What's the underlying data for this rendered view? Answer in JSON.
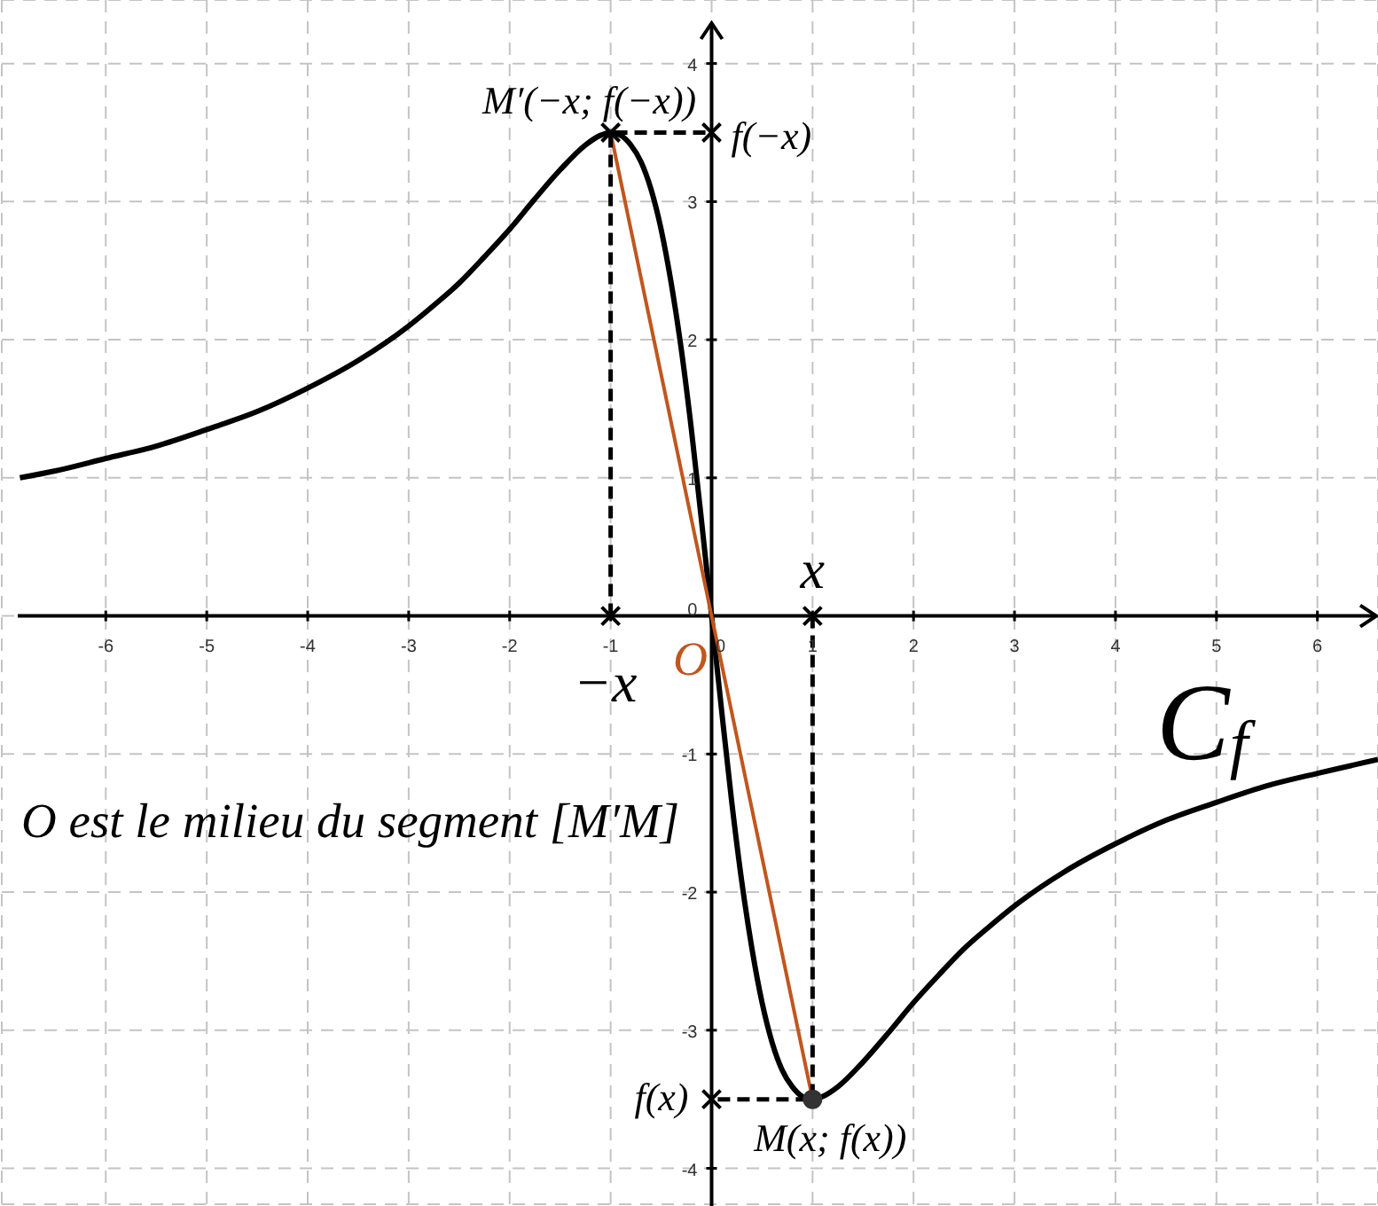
{
  "chart_data": {
    "type": "line",
    "annotations": [
      {
        "text": "M′(−x; f(−x))",
        "x": -1,
        "y": 3.5
      },
      {
        "text": "f(−x)",
        "x": 0,
        "y": 3.5
      },
      {
        "text": "M(x; f(x))",
        "x": 1,
        "y": -3.5
      },
      {
        "text": "f(x)",
        "x": 0,
        "y": -3.5
      },
      {
        "text": "x",
        "x": 1,
        "y": 0
      },
      {
        "text": "−x",
        "x": -1,
        "y": 0
      },
      {
        "text": "O",
        "x": 0,
        "y": 0
      },
      "C$_{f}$",
      "O est le milieu du segment [M′M]"
    ],
    "xlim": [
      -7.03,
      6.6
    ],
    "ylim": [
      -4.26,
      4.46
    ],
    "xticks": [
      -6,
      -5,
      -4,
      -3,
      -2,
      -1,
      0,
      1,
      2,
      3,
      4,
      5,
      6
    ],
    "yticks": [
      -4,
      -3,
      -2,
      -1,
      0,
      1,
      2,
      3,
      4
    ],
    "grid": true,
    "series": [
      {
        "type": "line",
        "color": "#000000",
        "marker": "none",
        "x": [
          -6.85,
          -6.5,
          -6,
          -5.5,
          -5,
          -4.5,
          -4,
          -3.5,
          -3,
          -2.75,
          -2.5,
          -2.25,
          -2,
          -1.75,
          -1.5,
          -1.25,
          -1.1,
          -1,
          -0.9,
          -0.8,
          -0.7,
          -0.6,
          -0.5,
          -0.4,
          -0.3,
          -0.2,
          -0.1,
          0,
          0.1,
          0.2,
          0.3,
          0.4,
          0.5,
          0.6,
          0.7,
          0.8,
          0.9,
          1,
          1.1,
          1.25,
          1.5,
          1.75,
          2,
          2.25,
          2.5,
          2.75,
          3,
          3.5,
          4,
          4.5,
          5,
          5.5,
          6,
          6.6
        ],
        "values": [
          1.0,
          1.05,
          1.14,
          1.23,
          1.35,
          1.48,
          1.65,
          1.85,
          2.1,
          2.25,
          2.41,
          2.6,
          2.8,
          3.02,
          3.23,
          3.41,
          3.48,
          3.5,
          3.48,
          3.41,
          3.29,
          3.09,
          2.8,
          2.41,
          1.93,
          1.35,
          0.69,
          0,
          -0.69,
          -1.35,
          -1.93,
          -2.41,
          -2.8,
          -3.09,
          -3.29,
          -3.41,
          -3.48,
          -3.5,
          -3.48,
          -3.41,
          -3.23,
          -3.02,
          -2.8,
          -2.6,
          -2.41,
          -2.25,
          -2.1,
          -1.85,
          -1.65,
          -1.48,
          -1.35,
          -1.23,
          -1.14,
          -1.04
        ]
      },
      {
        "type": "line",
        "color": "#c0561e",
        "marker": "none",
        "x": [
          -1,
          1
        ],
        "values": [
          3.5,
          -3.5
        ]
      },
      {
        "type": "line",
        "color": "#000000",
        "marker": "none",
        "line_style": "dashed",
        "x": [
          -1,
          -1,
          0
        ],
        "values": [
          0,
          3.5,
          3.5
        ]
      },
      {
        "type": "line",
        "color": "#000000",
        "marker": "none",
        "line_style": "dashed",
        "x": [
          1,
          1,
          0
        ],
        "values": [
          0,
          -3.5,
          -3.5
        ]
      },
      {
        "type": "scatter",
        "color": "#000000",
        "marker": "cross",
        "x": [
          -1,
          -1,
          0,
          1,
          0
        ],
        "values": [
          0,
          3.5,
          3.5,
          0,
          -3.5
        ]
      },
      {
        "type": "scatter",
        "color": "#333333",
        "marker": "circle",
        "x": [
          1
        ],
        "values": [
          -3.5
        ]
      }
    ]
  }
}
